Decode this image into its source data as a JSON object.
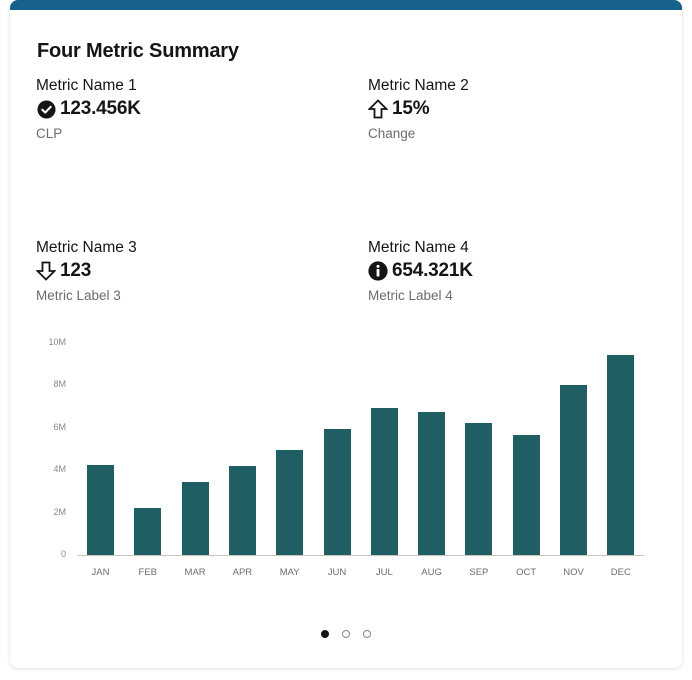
{
  "card": {
    "title": "Four Metric Summary",
    "accent_color": "#17628a"
  },
  "metrics": [
    {
      "name": "Metric Name 1",
      "icon": "check-circle-icon",
      "value": "123.456K",
      "label": "CLP"
    },
    {
      "name": "Metric Name 2",
      "icon": "arrow-up-outline-icon",
      "value": "15%",
      "label": "Change"
    },
    {
      "name": "Metric Name 3",
      "icon": "arrow-down-outline-icon",
      "value": "123",
      "label": "Metric Label 3"
    },
    {
      "name": "Metric Name 4",
      "icon": "info-circle-icon",
      "value": "654.321K",
      "label": "Metric Label 4"
    }
  ],
  "chart_data": {
    "type": "bar",
    "title": "",
    "xlabel": "",
    "ylabel": "",
    "categories": [
      "JAN",
      "FEB",
      "MAR",
      "APR",
      "MAY",
      "JUN",
      "JUL",
      "AUG",
      "SEP",
      "OCT",
      "NOV",
      "DEC"
    ],
    "values": [
      4250000,
      2200000,
      3450000,
      4200000,
      4950000,
      5950000,
      6950000,
      6750000,
      6250000,
      5650000,
      8000000,
      9450000
    ],
    "ylim": [
      0,
      10000000
    ],
    "yticks": [
      0,
      2000000,
      4000000,
      6000000,
      8000000,
      10000000
    ],
    "ytick_labels": [
      "0",
      "2M",
      "4M",
      "6M",
      "8M",
      "10M"
    ],
    "grid": false,
    "legend": "none",
    "bar_color": "#1f5f63"
  },
  "pagination": {
    "pages": 3,
    "current": 1
  }
}
